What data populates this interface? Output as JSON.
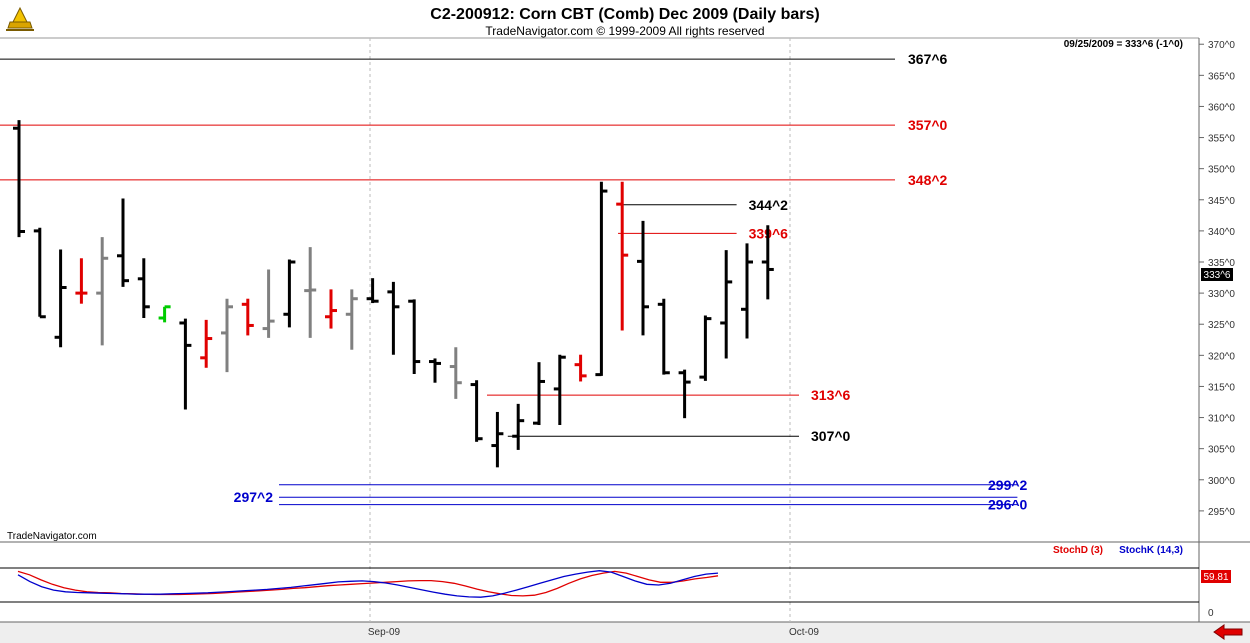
{
  "header": {
    "title": "C2-200912:  Corn CBT (Comb) Dec 2009  (Daily bars)",
    "subtitle": "TradeNavigator.com © 1999-2009 All rights reserved"
  },
  "readout": "09/25/2009 = 333^6 (-1^0)",
  "watermark": "TradeNavigator.com",
  "current_price_label": "333^6",
  "colors": {
    "price_up": "#000000",
    "price_gray": "#808080",
    "price_red": "#e00000",
    "price_green": "#00cc00",
    "level_black": "#000000",
    "level_red": "#e00000",
    "level_blue": "#0000cc",
    "stoch_d": "#e00000",
    "stoch_k": "#0000cc"
  },
  "chart_data": [
    {
      "type": "bar",
      "subtype": "ohlc",
      "title": "C2-200912:  Corn CBT (Comb) Dec 2009  (Daily bars)",
      "ylim": [
        290,
        371
      ],
      "y_ticks": [
        "295^0",
        "300^0",
        "305^0",
        "310^0",
        "315^0",
        "320^0",
        "325^0",
        "330^0",
        "335^0",
        "340^0",
        "345^0",
        "350^0",
        "355^0",
        "360^0",
        "365^0",
        "370^0"
      ],
      "x_ticks": [
        "Sep-09",
        "Oct-09"
      ],
      "bars": [
        {
          "h": 357.8,
          "l": 339.0,
          "o": 356.5,
          "c": 339.9,
          "col": "black"
        },
        {
          "h": 340.5,
          "l": 326.2,
          "o": 340.0,
          "c": 326.2,
          "col": "black"
        },
        {
          "h": 337.0,
          "l": 321.3,
          "o": 322.9,
          "c": 330.9,
          "col": "black"
        },
        {
          "h": 335.6,
          "l": 328.3,
          "o": 330.0,
          "c": 330.0,
          "col": "red"
        },
        {
          "h": 339.0,
          "l": 321.6,
          "o": 330.0,
          "c": 335.6,
          "col": "gray"
        },
        {
          "h": 345.2,
          "l": 331.0,
          "o": 336.0,
          "c": 332.0,
          "col": "black"
        },
        {
          "h": 335.6,
          "l": 326.0,
          "o": 332.3,
          "c": 327.8,
          "col": "black"
        },
        {
          "h": 327.8,
          "l": 325.3,
          "o": 326.0,
          "c": 327.8,
          "col": "green"
        },
        {
          "h": 325.9,
          "l": 311.3,
          "o": 325.2,
          "c": 321.6,
          "col": "black"
        },
        {
          "h": 325.7,
          "l": 318.0,
          "o": 319.6,
          "c": 322.7,
          "col": "red"
        },
        {
          "h": 329.1,
          "l": 317.3,
          "o": 323.6,
          "c": 327.8,
          "col": "gray"
        },
        {
          "h": 329.1,
          "l": 323.2,
          "o": 328.2,
          "c": 324.8,
          "col": "red"
        },
        {
          "h": 333.8,
          "l": 322.8,
          "o": 324.3,
          "c": 325.5,
          "col": "gray"
        },
        {
          "h": 335.4,
          "l": 324.5,
          "o": 326.6,
          "c": 335.0,
          "col": "black"
        },
        {
          "h": 337.4,
          "l": 322.8,
          "o": 330.4,
          "c": 330.5,
          "col": "gray"
        },
        {
          "h": 330.6,
          "l": 324.3,
          "o": 326.2,
          "c": 327.2,
          "col": "red"
        },
        {
          "h": 330.6,
          "l": 320.9,
          "o": 326.6,
          "c": 329.1,
          "col": "gray"
        },
        {
          "h": 332.4,
          "l": 328.4,
          "o": 329.1,
          "c": 328.7,
          "col": "black"
        },
        {
          "h": 331.8,
          "l": 320.1,
          "o": 330.2,
          "c": 327.8,
          "col": "black"
        },
        {
          "h": 329.0,
          "l": 317.0,
          "o": 328.7,
          "c": 319.0,
          "col": "black"
        },
        {
          "h": 319.5,
          "l": 315.6,
          "o": 319.0,
          "c": 318.7,
          "col": "black"
        },
        {
          "h": 321.3,
          "l": 313.0,
          "o": 318.2,
          "c": 315.6,
          "col": "gray"
        },
        {
          "h": 316.0,
          "l": 306.1,
          "o": 315.3,
          "c": 306.6,
          "col": "black"
        },
        {
          "h": 310.9,
          "l": 302.0,
          "o": 305.5,
          "c": 307.4,
          "col": "black"
        },
        {
          "h": 312.2,
          "l": 304.8,
          "o": 307.0,
          "c": 309.5,
          "col": "black"
        },
        {
          "h": 318.9,
          "l": 308.8,
          "o": 309.1,
          "c": 315.8,
          "col": "black"
        },
        {
          "h": 320.1,
          "l": 308.8,
          "o": 314.6,
          "c": 319.7,
          "col": "black"
        },
        {
          "h": 320.1,
          "l": 315.8,
          "o": 318.5,
          "c": 316.7,
          "col": "red"
        },
        {
          "h": 347.9,
          "l": 316.7,
          "o": 316.9,
          "c": 346.4,
          "col": "black"
        },
        {
          "h": 347.9,
          "l": 324.0,
          "o": 344.3,
          "c": 336.1,
          "col": "red"
        },
        {
          "h": 341.6,
          "l": 323.2,
          "o": 335.1,
          "c": 327.8,
          "col": "black"
        },
        {
          "h": 329.1,
          "l": 316.9,
          "o": 328.2,
          "c": 317.2,
          "col": "black"
        },
        {
          "h": 317.7,
          "l": 309.9,
          "o": 317.2,
          "c": 315.7,
          "col": "black"
        },
        {
          "h": 326.4,
          "l": 315.9,
          "o": 316.5,
          "c": 325.9,
          "col": "black"
        },
        {
          "h": 336.9,
          "l": 319.5,
          "o": 325.2,
          "c": 331.8,
          "col": "black"
        },
        {
          "h": 338.0,
          "l": 322.7,
          "o": 327.4,
          "c": 335.0,
          "col": "black"
        },
        {
          "h": 340.9,
          "l": 329.0,
          "o": 335.0,
          "c": 333.8,
          "col": "black"
        }
      ],
      "levels": [
        {
          "price": 367.6,
          "label": "367^6",
          "color": "black",
          "x_from": 0,
          "x_to": 38,
          "label_side": "right"
        },
        {
          "price": 357.0,
          "label": "357^0",
          "color": "red",
          "x_from": 0,
          "x_to": 38,
          "label_side": "right"
        },
        {
          "price": 348.2,
          "label": "348^2",
          "color": "red",
          "x_from": 0,
          "x_to": 38,
          "label_side": "right"
        },
        {
          "price": 344.2,
          "label": "344^2",
          "color": "black",
          "x_from": 28.8,
          "x_to": 34.5,
          "label_side": "right"
        },
        {
          "price": 339.6,
          "label": "339^6",
          "color": "red",
          "x_from": 28.8,
          "x_to": 34.5,
          "label_side": "right"
        },
        {
          "price": 313.6,
          "label": "313^6",
          "color": "red",
          "x_from": 22.5,
          "x_to": 37.5,
          "label_side": "right"
        },
        {
          "price": 307.0,
          "label": "307^0",
          "color": "black",
          "x_from": 23.5,
          "x_to": 37.5,
          "label_side": "right"
        },
        {
          "price": 299.2,
          "label": "299^2",
          "color": "blue",
          "x_from": 12.5,
          "x_to": 48,
          "label_side": "right"
        },
        {
          "price": 297.2,
          "label": "297^2",
          "color": "blue",
          "x_from": 12.5,
          "x_to": 48,
          "label_side": "left"
        },
        {
          "price": 296.0,
          "label": "296^0",
          "color": "blue",
          "x_from": 12.5,
          "x_to": 48,
          "label_side": "right"
        }
      ]
    },
    {
      "type": "line",
      "title": "",
      "ylim": [
        0,
        100
      ],
      "y_ticks": [
        "0"
      ],
      "series": [
        {
          "name": "StochD (3)",
          "values": [
            90,
            80,
            65,
            52,
            42,
            35,
            30,
            28,
            27,
            25,
            24,
            23,
            22,
            22,
            22,
            23,
            24,
            25,
            27,
            29,
            31,
            33,
            35,
            37,
            40,
            42,
            45,
            48,
            50,
            52,
            54,
            56,
            58,
            60,
            62,
            63,
            63,
            60,
            55,
            47,
            38,
            30,
            24,
            19,
            18,
            20,
            28,
            40,
            55,
            68,
            78,
            85,
            90,
            85,
            75,
            65,
            58,
            58,
            62,
            68,
            72,
            77
          ]
        },
        {
          "name": "StochK (14,3)",
          "values": [
            80,
            60,
            45,
            35,
            30,
            28,
            27,
            26,
            25,
            24,
            23,
            23,
            23,
            24,
            25,
            26,
            27,
            29,
            31,
            33,
            35,
            37,
            40,
            43,
            47,
            51,
            55,
            59,
            61,
            62,
            60,
            56,
            50,
            43,
            36,
            29,
            23,
            18,
            15,
            14,
            18,
            26,
            35,
            45,
            55,
            65,
            75,
            82,
            88,
            92,
            88,
            75,
            62,
            52,
            50,
            55,
            65,
            75,
            82,
            85
          ]
        }
      ],
      "last_value_label": "59.81"
    }
  ]
}
